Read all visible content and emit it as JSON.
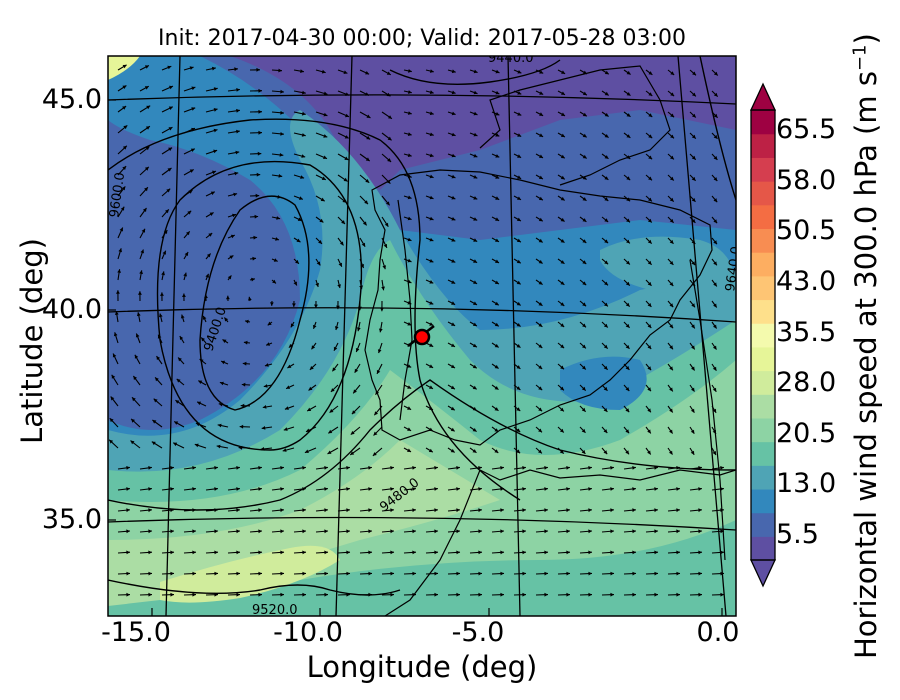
{
  "chart_data": {
    "type": "map-contour",
    "title": "Init: 2017-04-30 00:00; Valid: 2017-05-28 03:00",
    "xlabel": "Longitude (deg)",
    "ylabel": "Latitude (deg)",
    "xlim": [
      -15.8,
      0.2
    ],
    "ylim": [
      32.6,
      46.1
    ],
    "x_ticks": [
      "-15.0",
      "-10.0",
      "-5.0",
      "0.0"
    ],
    "y_ticks": [
      "35.0",
      "40.0",
      "45.0"
    ],
    "colorbar": {
      "label": "Horizontal wind speed at 300.0 hPa (m s",
      "label_exponent": "−1",
      "label_close": ")",
      "ticks": [
        "5.5",
        "13.0",
        "20.5",
        "28.0",
        "35.5",
        "43.0",
        "50.5",
        "58.0",
        "65.5"
      ],
      "range": [
        5.5,
        65.5
      ],
      "extend": "both",
      "colors": [
        "#5e4fa2",
        "#4867ae",
        "#3288bd",
        "#4fa4b5",
        "#66c2a5",
        "#8dd3a4",
        "#abdda4",
        "#d0ec9c",
        "#e6f598",
        "#f4faad",
        "#fee08b",
        "#fec574",
        "#fdae61",
        "#f88d52",
        "#f46d43",
        "#e55748",
        "#d53e4f",
        "#bd2145",
        "#9e0142"
      ]
    },
    "contour_labels": [
      "9400.0",
      "9480.0",
      "9520.0",
      "9600.0",
      "9440.0",
      "9640.0"
    ],
    "marker": {
      "lon": -7.6,
      "lat": 39.3,
      "color": "#ff0000"
    },
    "wind_field": "arrows showing 300 hPa wind direction; cyclonic circulation west of Iberia, strong westerly jet across the south"
  }
}
